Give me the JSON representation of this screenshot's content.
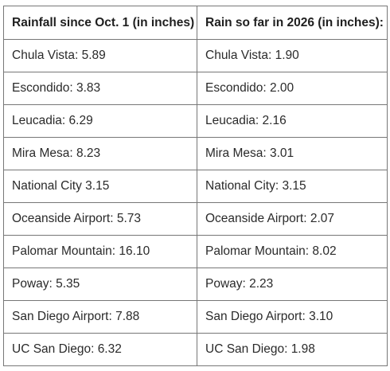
{
  "table": {
    "headers": [
      "Rainfall since Oct. 1 (in inches)",
      "Rain so far in 2026 (in inches):"
    ],
    "rows": [
      [
        "Chula Vista: 5.89",
        "Chula Vista: 1.90"
      ],
      [
        "Escondido: 3.83",
        "Escondido: 2.00"
      ],
      [
        "Leucadia: 6.29",
        "Leucadia: 2.16"
      ],
      [
        "Mira Mesa: 8.23",
        "Mira Mesa: 3.01"
      ],
      [
        "National City 3.15",
        "National City: 3.15"
      ],
      [
        "Oceanside Airport: 5.73",
        "Oceanside Airport: 2.07"
      ],
      [
        "Palomar Mountain: 16.10",
        "Palomar Mountain: 8.02"
      ],
      [
        "Poway: 5.35",
        "Poway: 2.23"
      ],
      [
        "San Diego Airport: 7.88",
        "San Diego Airport: 3.10"
      ],
      [
        "UC San Diego: 6.32",
        "UC San Diego: 1.98"
      ]
    ]
  }
}
